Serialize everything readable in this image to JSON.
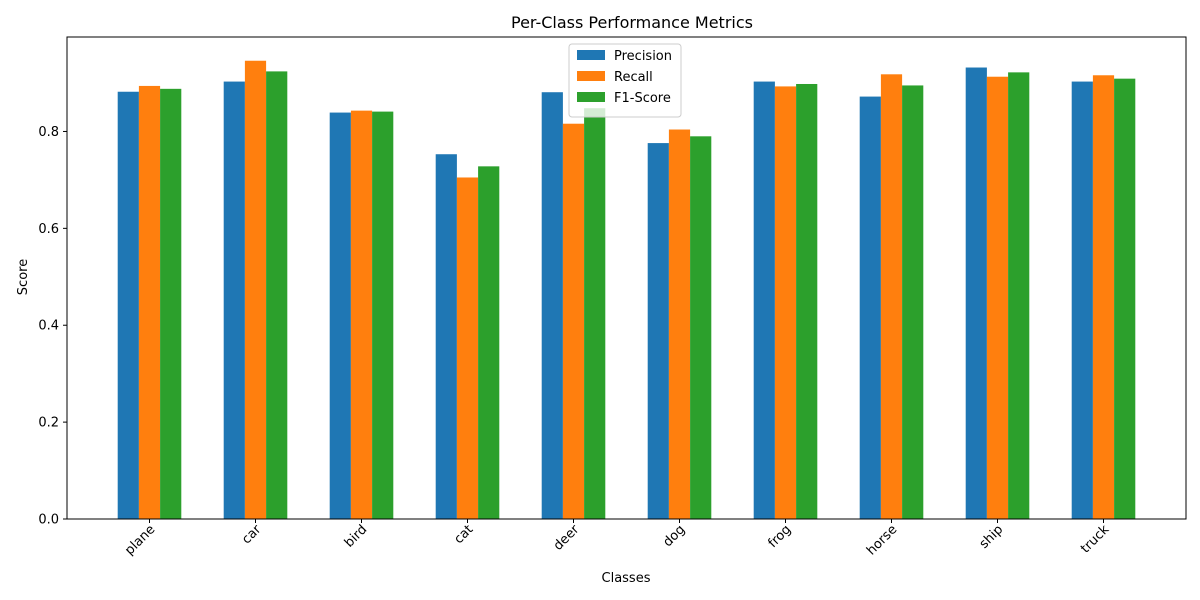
{
  "chart_data": {
    "type": "bar",
    "title": "Per-Class Performance Metrics",
    "xlabel": "Classes",
    "ylabel": "Score",
    "ylim": [
      0,
      0.995
    ],
    "yticks": [
      "0.0",
      "0.2",
      "0.4",
      "0.6",
      "0.8"
    ],
    "grid": false,
    "legend_position": "top-center",
    "categories": [
      "plane",
      "car",
      "bird",
      "cat",
      "deer",
      "dog",
      "frog",
      "horse",
      "ship",
      "truck"
    ],
    "series": [
      {
        "name": "Precision",
        "color": "#1f77b4",
        "values": [
          0.882,
          0.903,
          0.839,
          0.753,
          0.881,
          0.776,
          0.903,
          0.872,
          0.932,
          0.903
        ]
      },
      {
        "name": "Recall",
        "color": "#ff7f0e",
        "values": [
          0.894,
          0.946,
          0.843,
          0.705,
          0.816,
          0.804,
          0.893,
          0.918,
          0.913,
          0.916
        ]
      },
      {
        "name": "F1-Score",
        "color": "#2ca02c",
        "values": [
          0.888,
          0.924,
          0.841,
          0.728,
          0.848,
          0.79,
          0.898,
          0.895,
          0.922,
          0.909
        ]
      }
    ]
  }
}
